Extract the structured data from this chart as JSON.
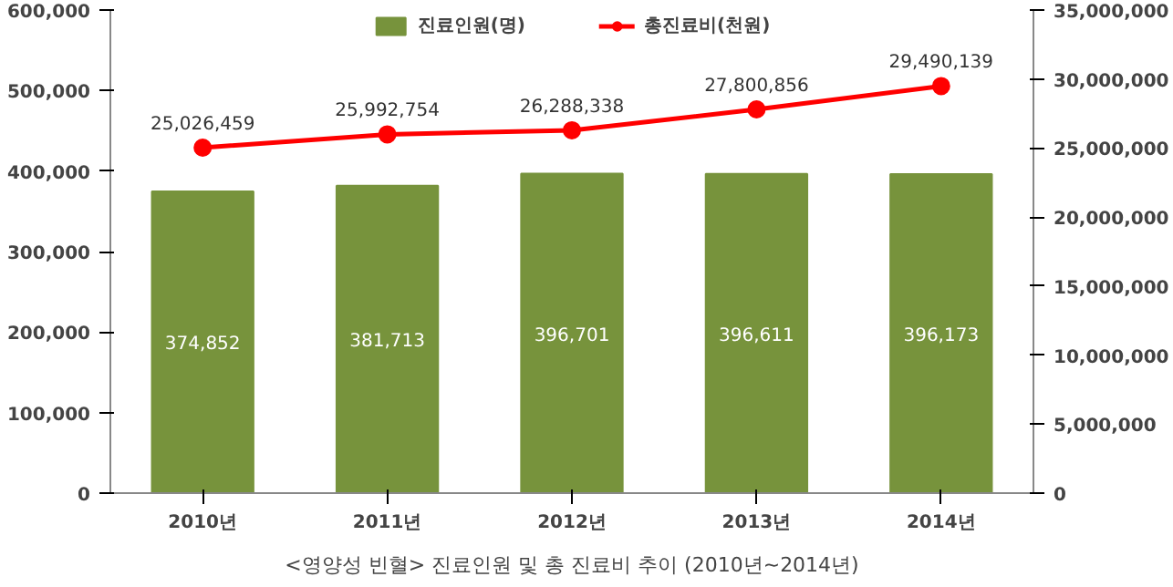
{
  "chart_data": {
    "type": "bar",
    "categories": [
      "2010년",
      "2011년",
      "2012년",
      "2013년",
      "2014년"
    ],
    "series": [
      {
        "name": "진료인원(명)",
        "color": "#77933c",
        "values": [
          374852,
          381713,
          396701,
          396611,
          396173
        ],
        "value_labels": [
          "374,852",
          "381,713",
          "396,701",
          "396,611",
          "396,173"
        ]
      },
      {
        "name": "총진료비(천원)",
        "type": "line",
        "axis": "y2",
        "color": "#ff0000",
        "values": [
          25026459,
          25992754,
          26288338,
          27800856,
          29490139
        ],
        "value_labels": [
          "25,026,459",
          "25,992,754",
          "26,288,338",
          "27,800,856",
          "29,490,139"
        ]
      }
    ],
    "ylim": [
      0,
      600000
    ],
    "yticks": [
      {
        "value": 0,
        "label": "0"
      },
      {
        "value": 100000,
        "label": "100,000"
      },
      {
        "value": 200000,
        "label": "200,000"
      },
      {
        "value": 300000,
        "label": "300,000"
      },
      {
        "value": 400000,
        "label": "400,000"
      },
      {
        "value": 500000,
        "label": "500,000"
      },
      {
        "value": 600000,
        "label": "600,000"
      }
    ],
    "y2lim": [
      0,
      35000000
    ],
    "y2ticks": [
      {
        "value": 0,
        "label": "0"
      },
      {
        "value": 5000000,
        "label": "5,000,000"
      },
      {
        "value": 10000000,
        "label": "10,000,000"
      },
      {
        "value": 15000000,
        "label": "15,000,000"
      },
      {
        "value": 20000000,
        "label": "20,000,000"
      },
      {
        "value": 25000000,
        "label": "25,000,000"
      },
      {
        "value": 30000000,
        "label": "30,000,000"
      },
      {
        "value": 35000000,
        "label": "35,000,000"
      }
    ],
    "legend": "top",
    "marker": "circle",
    "annotations": [
      "<영양성 빈혈> 진료인원 및 총 진료비 추이 (2010년~2014년)"
    ]
  }
}
